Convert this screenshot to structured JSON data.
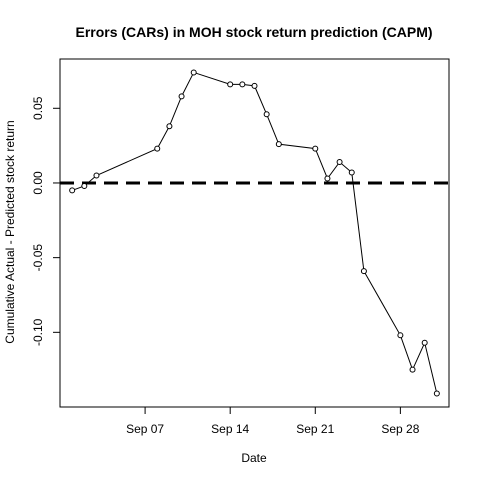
{
  "chart_data": {
    "type": "line",
    "title": "Errors (CARs) in MOH stock return prediction (CAPM)",
    "xlabel": "Date",
    "ylabel": "Cumulative Actual - Predicted stock return",
    "x_tick_labels": [
      "Sep 07",
      "Sep 14",
      "Sep 21",
      "Sep 28"
    ],
    "x_tick_dates": [
      "2015-09-07",
      "2015-09-14",
      "2015-09-21",
      "2015-09-28"
    ],
    "y_tick_labels": [
      "0.05",
      "0.00",
      "-0.05",
      "-0.10"
    ],
    "y_ticks": [
      0.05,
      0.0,
      -0.05,
      -0.1
    ],
    "xlim": [
      "2015-08-31",
      "2015-10-02"
    ],
    "ylim": [
      -0.15,
      0.083
    ],
    "reference_line": {
      "y": 0.0,
      "style": "dashed",
      "color": "#000000"
    },
    "series": [
      {
        "x": [
          "2015-09-01",
          "2015-09-02",
          "2015-09-03",
          "2015-09-08",
          "2015-09-09",
          "2015-09-10",
          "2015-09-11",
          "2015-09-14",
          "2015-09-15",
          "2015-09-16",
          "2015-09-17",
          "2015-09-18",
          "2015-09-21",
          "2015-09-22",
          "2015-09-23",
          "2015-09-24",
          "2015-09-25",
          "2015-09-28",
          "2015-09-29",
          "2015-09-30",
          "2015-10-01"
        ],
        "y": [
          -0.005,
          -0.002,
          0.005,
          0.023,
          0.038,
          0.058,
          0.074,
          0.066,
          0.066,
          0.065,
          0.046,
          0.026,
          0.023,
          0.003,
          0.014,
          0.007,
          -0.059,
          -0.102,
          -0.125,
          -0.107,
          -0.141
        ]
      }
    ],
    "grid": false,
    "legend": "none"
  }
}
